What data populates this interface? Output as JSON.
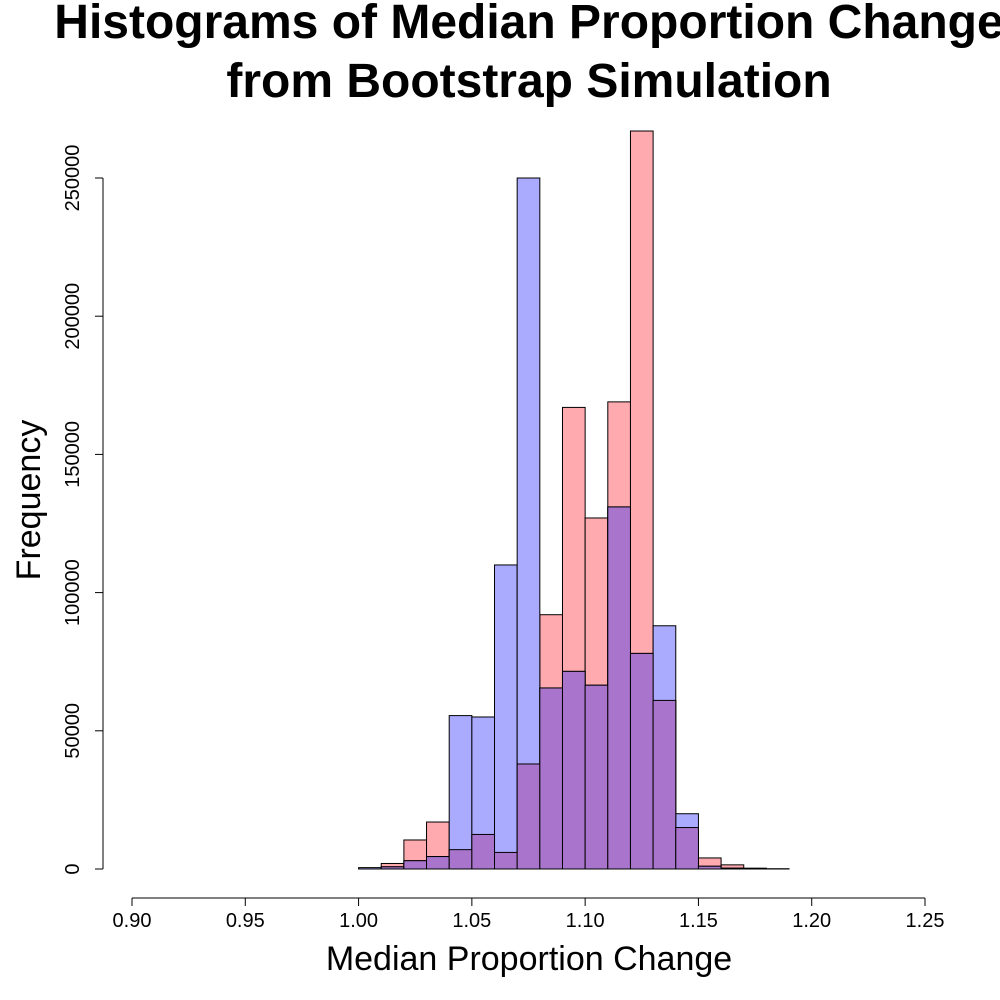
{
  "chart_data": {
    "type": "bar",
    "title": "Histograms of Median Proportion Change from Bootstrap Simulation",
    "title_lines": [
      "Histograms of Median Proportion Change",
      "from Bootstrap Simulation"
    ],
    "xlabel": "Median Proportion Change",
    "ylabel": "Frequency",
    "xlim": [
      0.9,
      1.25
    ],
    "ylim": [
      0,
      270000
    ],
    "x_ticks": [
      0.9,
      0.95,
      1.0,
      1.05,
      1.1,
      1.15,
      1.2,
      1.25
    ],
    "x_tick_labels": [
      "0.90",
      "0.95",
      "1.00",
      "1.05",
      "1.10",
      "1.15",
      "1.20",
      "1.25"
    ],
    "y_ticks": [
      0,
      50000,
      100000,
      150000,
      200000,
      250000
    ],
    "y_tick_labels": [
      "0",
      "50000",
      "100000",
      "150000",
      "200000",
      "250000"
    ],
    "grid": false,
    "bin_width": 0.01,
    "series": [
      {
        "color": "#ffaaaf",
        "bins": [
          {
            "start": 0.9,
            "end": 1.01,
            "value": 0
          },
          {
            "start": 1.01,
            "end": 1.02,
            "value": 2000
          },
          {
            "start": 1.02,
            "end": 1.03,
            "value": 10500
          },
          {
            "start": 1.03,
            "end": 1.04,
            "value": 17000
          },
          {
            "start": 1.04,
            "end": 1.05,
            "value": 7000
          },
          {
            "start": 1.05,
            "end": 1.06,
            "value": 12500
          },
          {
            "start": 1.06,
            "end": 1.07,
            "value": 6000
          },
          {
            "start": 1.07,
            "end": 1.08,
            "value": 38000
          },
          {
            "start": 1.08,
            "end": 1.09,
            "value": 92000
          },
          {
            "start": 1.09,
            "end": 1.1,
            "value": 167000
          },
          {
            "start": 1.1,
            "end": 1.11,
            "value": 127000
          },
          {
            "start": 1.11,
            "end": 1.12,
            "value": 169000
          },
          {
            "start": 1.12,
            "end": 1.13,
            "value": 267000
          },
          {
            "start": 1.13,
            "end": 1.14,
            "value": 61000
          },
          {
            "start": 1.14,
            "end": 1.15,
            "value": 15000
          },
          {
            "start": 1.15,
            "end": 1.16,
            "value": 4000
          },
          {
            "start": 1.16,
            "end": 1.17,
            "value": 1500
          },
          {
            "start": 1.17,
            "end": 1.18,
            "value": 300
          },
          {
            "start": 1.18,
            "end": 1.19,
            "value": 100
          },
          {
            "start": 1.19,
            "end": 1.22,
            "value": 0
          }
        ]
      },
      {
        "color": "#aaaaff",
        "bins": [
          {
            "start": 0.9,
            "end": 1.0,
            "value": 0
          },
          {
            "start": 1.0,
            "end": 1.01,
            "value": 500
          },
          {
            "start": 1.01,
            "end": 1.02,
            "value": 800
          },
          {
            "start": 1.02,
            "end": 1.03,
            "value": 3000
          },
          {
            "start": 1.03,
            "end": 1.04,
            "value": 4500
          },
          {
            "start": 1.04,
            "end": 1.05,
            "value": 55500
          },
          {
            "start": 1.05,
            "end": 1.06,
            "value": 55000
          },
          {
            "start": 1.06,
            "end": 1.07,
            "value": 110000
          },
          {
            "start": 1.07,
            "end": 1.08,
            "value": 250000
          },
          {
            "start": 1.08,
            "end": 1.09,
            "value": 65500
          },
          {
            "start": 1.09,
            "end": 1.1,
            "value": 71500
          },
          {
            "start": 1.1,
            "end": 1.11,
            "value": 66500
          },
          {
            "start": 1.11,
            "end": 1.12,
            "value": 131000
          },
          {
            "start": 1.12,
            "end": 1.13,
            "value": 78000
          },
          {
            "start": 1.13,
            "end": 1.14,
            "value": 88000
          },
          {
            "start": 1.14,
            "end": 1.15,
            "value": 20000
          },
          {
            "start": 1.15,
            "end": 1.16,
            "value": 1000
          },
          {
            "start": 1.16,
            "end": 1.17,
            "value": 300
          },
          {
            "start": 1.17,
            "end": 1.22,
            "value": 0
          }
        ]
      }
    ],
    "overlap_color": "#a974cc"
  }
}
